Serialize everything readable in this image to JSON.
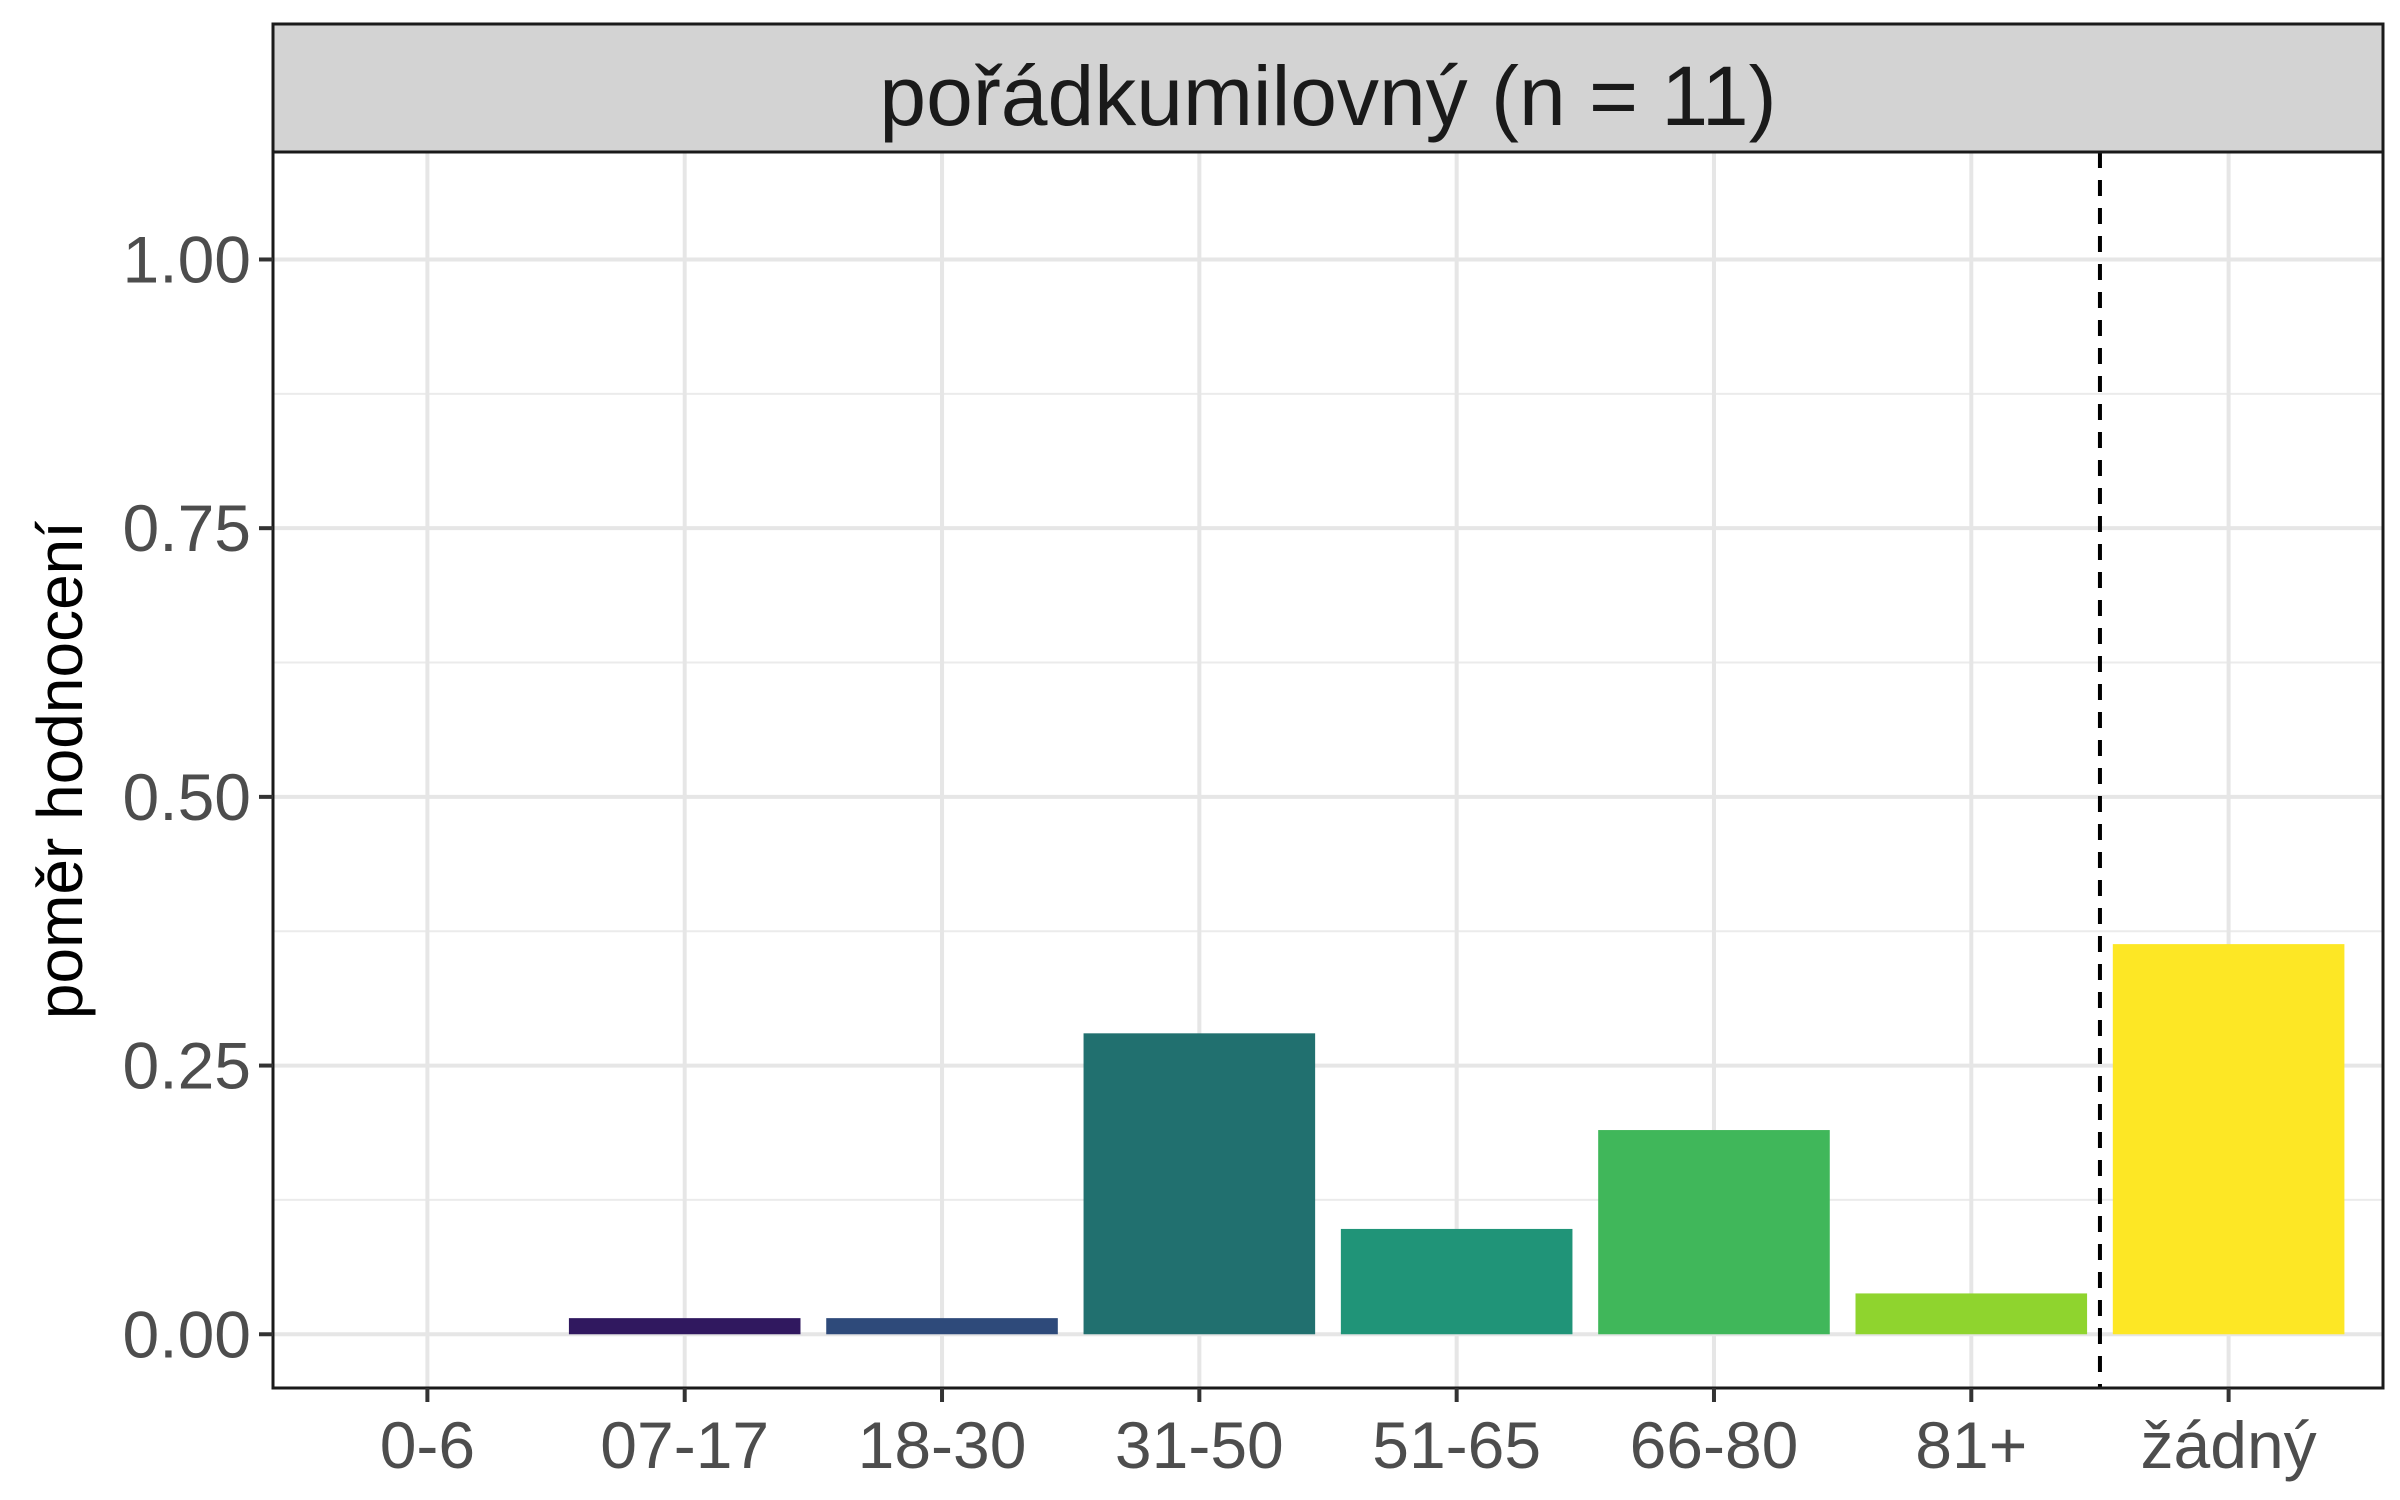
{
  "chart_data": {
    "type": "bar",
    "facet_label": "pořádkumilovný (n = 11)",
    "xlabel": "",
    "ylabel": "poměr hodnocení",
    "categories": [
      "0-6",
      "07-17",
      "18-30",
      "31-50",
      "51-65",
      "66-80",
      "81+",
      "žádný"
    ],
    "values": [
      0.0,
      0.015,
      0.015,
      0.28,
      0.098,
      0.19,
      0.038,
      0.363
    ],
    "colors": [
      "#440154",
      "#30185f",
      "#2e4a7a",
      "#21706f",
      "#209478",
      "#40b75a",
      "#8fd42e",
      "#fde725"
    ],
    "ylim": [
      -0.05,
      1.1
    ],
    "yticks": [
      0.0,
      0.25,
      0.5,
      0.75,
      1.0
    ],
    "ytick_labels": [
      "0.00",
      "0.25",
      "0.50",
      "0.75",
      "1.00"
    ],
    "reference_line": {
      "style": "dashed",
      "between": [
        "81+",
        "žádný"
      ]
    },
    "grid": true,
    "legend": "none"
  }
}
